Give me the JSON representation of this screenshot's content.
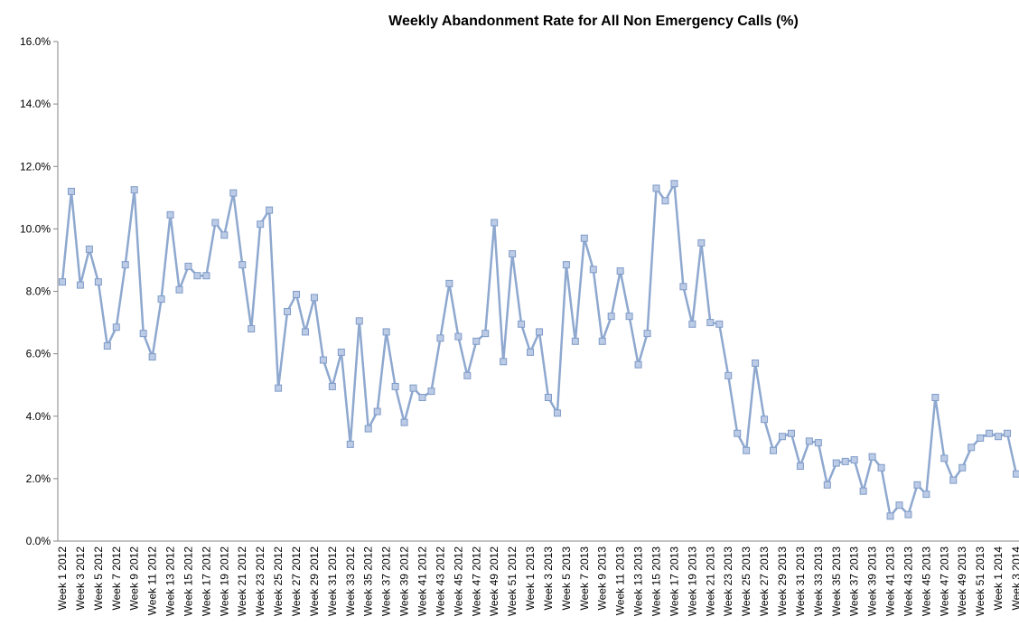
{
  "chart_data": {
    "type": "line",
    "title": "Weekly Abandonment Rate for All Non Emergency Calls (%)",
    "categories": [
      "Week 1 2012",
      null,
      "Week 3 2012",
      null,
      "Week 5 2012",
      null,
      "Week 7 2012",
      null,
      "Week 9 2012",
      null,
      "Week 11 2012",
      null,
      "Week 13 2012",
      null,
      "Week 15 2012",
      null,
      "Week 17 2012",
      null,
      "Week 19 2012",
      null,
      "Week 21 2012",
      null,
      "Week 23 2012",
      null,
      "Week 25 2012",
      null,
      "Week 27 2012",
      null,
      "Week 29 2012",
      null,
      "Week 31 2012",
      null,
      "Week 33 2012",
      null,
      "Week 35 2012",
      null,
      "Week 37 2012",
      null,
      "Week 39 2012",
      null,
      "Week 41 2012",
      null,
      "Week 43 2012",
      null,
      "Week 45 2012",
      null,
      "Week 47 2012",
      null,
      "Week 49 2012",
      null,
      "Week 51 2012",
      null,
      "Week 1 2013",
      null,
      "Week 3 2013",
      null,
      "Week 5 2013",
      null,
      "Week 7 2013",
      null,
      "Week 9 2013",
      null,
      "Week 11 2013",
      null,
      "Week 13 2013",
      null,
      "Week 15 2013",
      null,
      "Week 17 2013",
      null,
      "Week 19 2013",
      null,
      "Week 21 2013",
      null,
      "Week 23 2013",
      null,
      "Week 25 2013",
      null,
      "Week 27 2013",
      null,
      "Week 29 2013",
      null,
      "Week 31 2013",
      null,
      "Week 33 2013",
      null,
      "Week 35 2013",
      null,
      "Week 37 2013",
      null,
      "Week 39 2013",
      null,
      "Week 41 2013",
      null,
      "Week 43 2013",
      null,
      "Week 45 2013",
      null,
      "Week 47 2013",
      null,
      "Week 49 2013",
      null,
      "Week 51 2013",
      null,
      "Week 1 2014",
      null,
      "Week 3 2014"
    ],
    "values": [
      8.3,
      11.2,
      8.2,
      9.35,
      8.3,
      6.25,
      6.85,
      8.85,
      11.25,
      6.65,
      5.9,
      7.75,
      10.45,
      8.05,
      8.8,
      8.5,
      8.5,
      10.2,
      9.8,
      11.15,
      8.85,
      6.8,
      10.15,
      10.6,
      4.9,
      7.35,
      7.9,
      6.7,
      7.8,
      5.8,
      4.95,
      6.05,
      3.1,
      7.05,
      3.6,
      4.15,
      6.7,
      4.95,
      3.8,
      4.9,
      4.6,
      4.8,
      6.5,
      8.25,
      6.55,
      5.3,
      6.4,
      6.65,
      10.2,
      5.75,
      9.2,
      6.95,
      6.05,
      6.7,
      4.6,
      4.1,
      8.85,
      6.4,
      9.7,
      8.7,
      6.4,
      7.2,
      8.65,
      7.2,
      5.65,
      6.65,
      11.3,
      10.9,
      11.45,
      8.15,
      6.95,
      9.55,
      7.0,
      6.95,
      5.3,
      3.45,
      2.9,
      5.7,
      3.9,
      2.9,
      3.35,
      3.45,
      2.4,
      3.2,
      3.15,
      1.8,
      2.5,
      2.55,
      2.6,
      1.6,
      2.7,
      2.35,
      0.8,
      1.15,
      0.85,
      1.8,
      1.5,
      4.6,
      2.65,
      1.95,
      2.35,
      3.0,
      3.3,
      3.45,
      3.35,
      3.45,
      2.15
    ],
    "color": "#8ea8cf",
    "ylim": [
      0,
      16
    ],
    "yticks": [
      {
        "value": 0,
        "label": "0.0%"
      },
      {
        "value": 2,
        "label": "2.0%"
      },
      {
        "value": 4,
        "label": "4.0%"
      },
      {
        "value": 6,
        "label": "6.0%"
      },
      {
        "value": 8,
        "label": "8.0%"
      },
      {
        "value": 10,
        "label": "10.0%"
      },
      {
        "value": 12,
        "label": "12.0%"
      },
      {
        "value": 14,
        "label": "14.0%"
      },
      {
        "value": 16,
        "label": "16.0%"
      }
    ],
    "grid": false
  }
}
